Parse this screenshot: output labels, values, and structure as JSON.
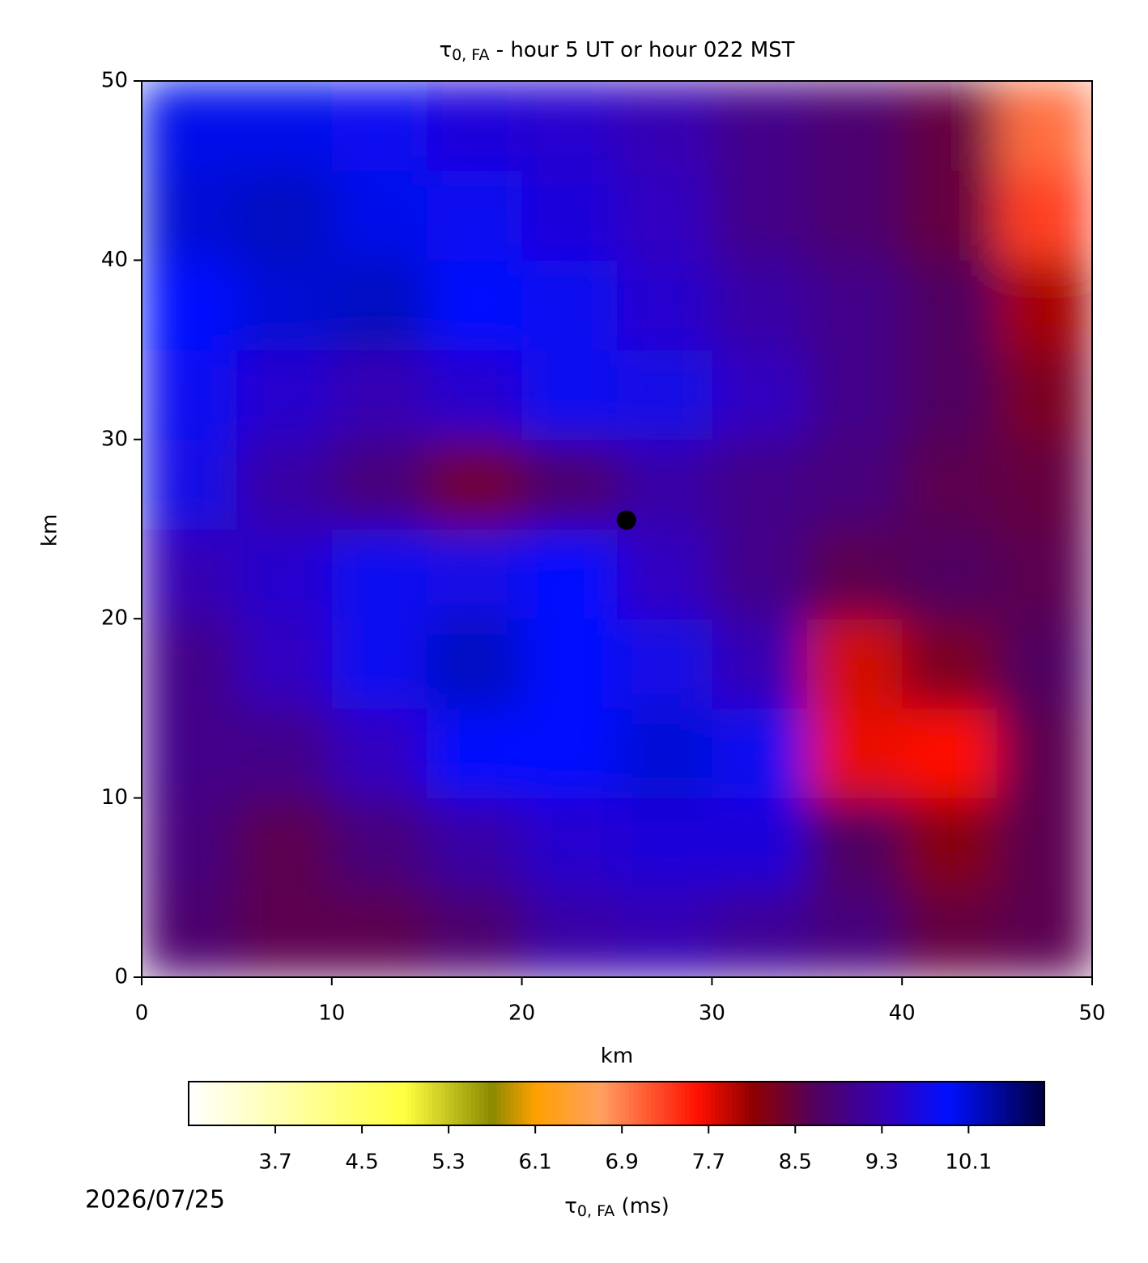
{
  "chart_data": {
    "type": "heatmap",
    "title_symbol": "τ",
    "title_subscript": "0, FA",
    "title_rest": " - hour 5 UT or hour 022 MST",
    "xlabel": "km",
    "ylabel": "km",
    "xbins": [
      0,
      5,
      10,
      15,
      20,
      25,
      30,
      35,
      40,
      45,
      50
    ],
    "ybins": [
      0,
      5,
      10,
      15,
      20,
      25,
      30,
      35,
      40,
      45,
      50
    ],
    "z": [
      [
        8.8,
        8.6,
        8.6,
        8.8,
        9.2,
        9.3,
        9.1,
        8.9,
        8.5,
        8.6
      ],
      [
        8.9,
        8.6,
        8.9,
        9.2,
        9.5,
        9.6,
        9.6,
        8.7,
        8.2,
        8.6
      ],
      [
        9.0,
        9.0,
        9.4,
        9.9,
        9.9,
        10.1,
        9.8,
        7.7,
        7.6,
        8.6
      ],
      [
        9.0,
        9.4,
        9.8,
        10.2,
        9.9,
        9.7,
        9.3,
        7.8,
        8.3,
        8.7
      ],
      [
        9.3,
        9.5,
        9.8,
        9.7,
        9.9,
        9.4,
        9.0,
        8.6,
        8.7,
        8.6
      ],
      [
        9.7,
        9.2,
        8.9,
        8.4,
        8.8,
        9.2,
        9.0,
        8.9,
        8.6,
        8.5
      ],
      [
        9.8,
        9.5,
        9.3,
        9.5,
        9.8,
        9.7,
        9.4,
        9.0,
        8.7,
        8.3
      ],
      [
        9.9,
        10.1,
        10.2,
        9.9,
        9.8,
        9.5,
        9.2,
        9.0,
        8.7,
        8.0
      ],
      [
        10.1,
        10.2,
        10.0,
        9.8,
        9.6,
        9.4,
        9.0,
        8.8,
        8.5,
        7.3
      ],
      [
        10.0,
        10.0,
        9.8,
        9.6,
        9.5,
        9.3,
        9.0,
        8.8,
        8.5,
        7.0
      ]
    ],
    "xlim": [
      0,
      50
    ],
    "ylim": [
      0,
      50
    ],
    "xticks": [
      0,
      10,
      20,
      30,
      40,
      50
    ],
    "yticks": [
      0,
      10,
      20,
      30,
      40,
      50
    ],
    "marker": {
      "x": 25.5,
      "y": 25.5,
      "color": "#000000"
    },
    "clim": [
      2.9,
      10.8
    ],
    "cticks": [
      3.7,
      4.5,
      5.3,
      6.1,
      6.9,
      7.7,
      8.5,
      9.3,
      10.1
    ],
    "colormap": [
      [
        2.9,
        "#ffffff"
      ],
      [
        4.9,
        "#ffff40"
      ],
      [
        5.7,
        "#8a8a00"
      ],
      [
        6.1,
        "#ffa000"
      ],
      [
        6.7,
        "#ffa060"
      ],
      [
        7.6,
        "#ff1000"
      ],
      [
        8.1,
        "#900000"
      ],
      [
        8.7,
        "#500060"
      ],
      [
        9.4,
        "#3000c0"
      ],
      [
        9.9,
        "#0010ff"
      ],
      [
        10.8,
        "#000040"
      ]
    ],
    "clabel_symbol": "τ",
    "clabel_subscript": "0, FA",
    "clabel_rest": " (ms)",
    "date": "2026/07/25"
  }
}
